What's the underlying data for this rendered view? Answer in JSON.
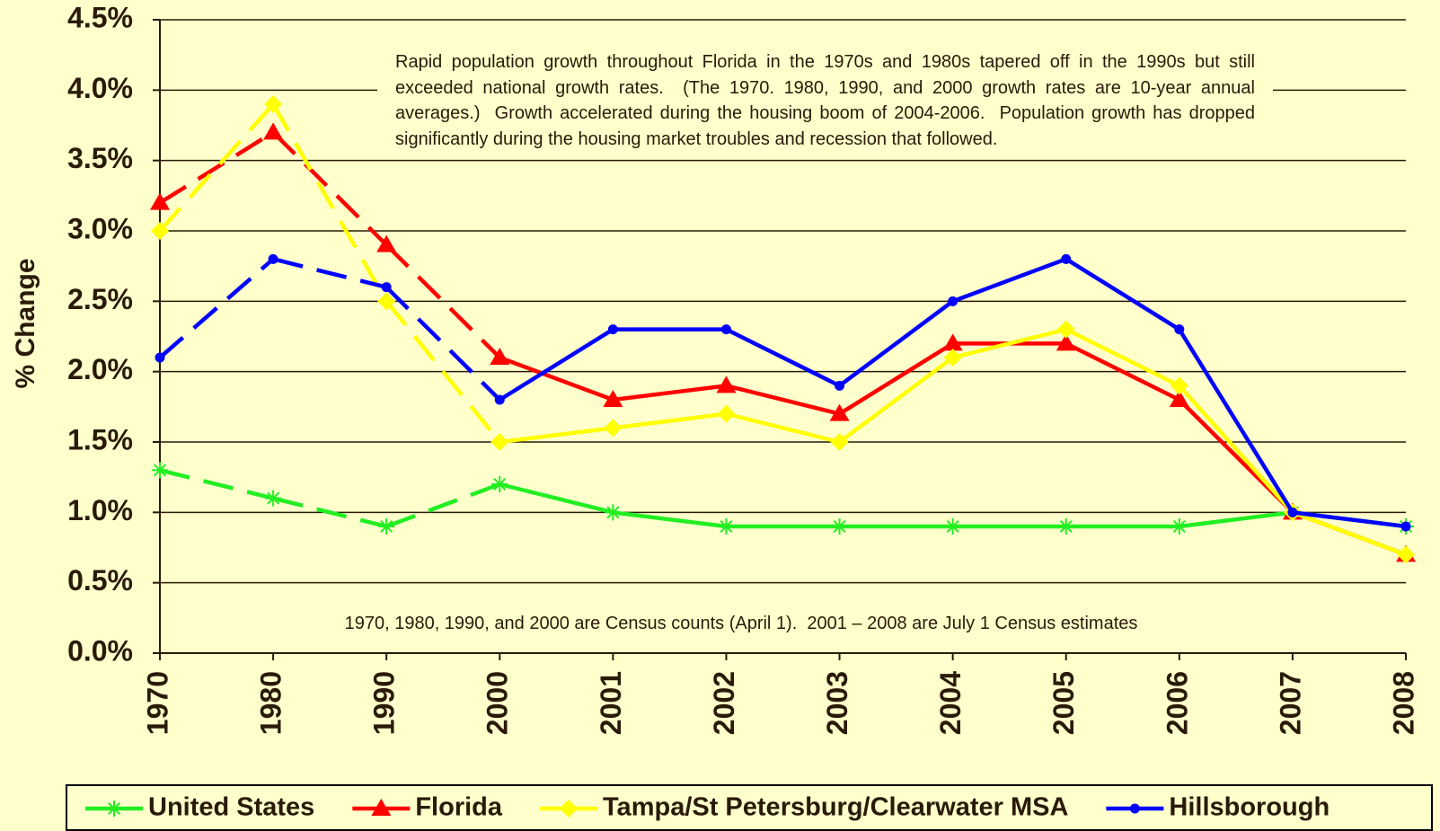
{
  "chart_data": {
    "type": "line",
    "ylabel": "% Change",
    "categories": [
      "1970",
      "1980",
      "1990",
      "2000",
      "2001",
      "2002",
      "2003",
      "2004",
      "2005",
      "2006",
      "2007",
      "2008"
    ],
    "dashed_until_index": 3,
    "series": [
      {
        "name": "United States",
        "color": "#22ee22",
        "marker": "asterisk",
        "values": [
          1.3,
          1.1,
          0.9,
          1.2,
          1.0,
          0.9,
          0.9,
          0.9,
          0.9,
          0.9,
          1.0,
          0.9
        ]
      },
      {
        "name": "Florida",
        "color": "#ff0000",
        "marker": "triangle",
        "values": [
          3.2,
          3.7,
          2.9,
          2.1,
          1.8,
          1.9,
          1.7,
          2.2,
          2.2,
          1.8,
          1.0,
          0.7
        ]
      },
      {
        "name": "Tampa/St Petersburg/Clearwater MSA",
        "color": "#ffff00",
        "marker": "diamond",
        "values": [
          3.0,
          3.9,
          2.5,
          1.5,
          1.6,
          1.7,
          1.5,
          2.1,
          2.3,
          1.9,
          1.0,
          0.7
        ]
      },
      {
        "name": "Hillsborough",
        "color": "#0000ff",
        "marker": "circle",
        "values": [
          2.1,
          2.8,
          2.6,
          1.8,
          2.3,
          2.3,
          1.9,
          2.5,
          2.8,
          2.3,
          1.0,
          0.9
        ]
      }
    ],
    "ylim": [
      0,
      4.5
    ],
    "yticks": [
      {
        "value": 0,
        "label": "0.0%"
      },
      {
        "value": 0.5,
        "label": "0.5%"
      },
      {
        "value": 1,
        "label": "1.0%"
      },
      {
        "value": 1.5,
        "label": "1.5%"
      },
      {
        "value": 2,
        "label": "2.0%"
      },
      {
        "value": 2.5,
        "label": "2.5%"
      },
      {
        "value": 3,
        "label": "3.0%"
      },
      {
        "value": 3.5,
        "label": "3.5%"
      },
      {
        "value": 4,
        "label": "4.0%"
      },
      {
        "value": 4.5,
        "label": "4.5%"
      }
    ],
    "grid": true,
    "legend": "bottom",
    "annotations": [
      "Rapid population growth throughout Florida in the 1970s and 1980s tapered off in the 1990s but still exceeded national growth rates.  (The 1970. 1980, 1990, and 2000 growth rates are 10-year annual averages.)  Growth accelerated during the housing boom of 2004-2006.  Population growth has dropped significantly during the housing market troubles and recession that followed.",
      "1970, 1980, 1990, and 2000 are Census counts (April 1).  2001 – 2008 are July 1 Census estimates"
    ]
  }
}
